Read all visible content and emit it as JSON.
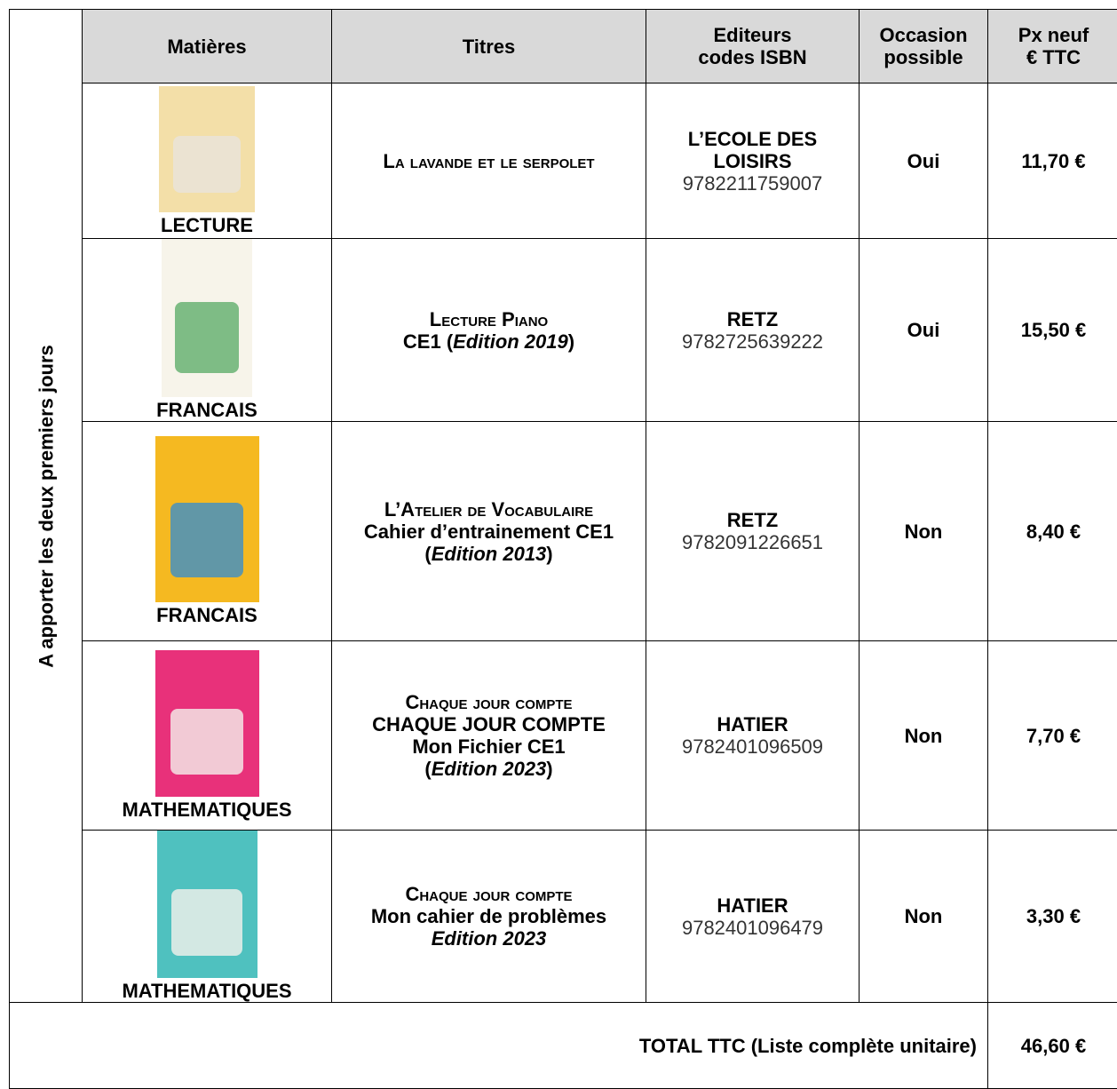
{
  "side_label": "A apporter les deux premiers jours",
  "header": {
    "subject": "Matières",
    "title": "Titres",
    "editor_lines": [
      "Editeurs",
      "codes ISBN"
    ],
    "used_lines": [
      "Occasion",
      "possible"
    ],
    "price_lines": [
      "Px neuf",
      "€ TTC"
    ]
  },
  "rows": [
    {
      "subject": "LECTURE",
      "title_lines": [
        [
          "La lavande et le serpolet"
        ]
      ],
      "editor_lines": [
        "L’ECOLE DES",
        "LOISIRS"
      ],
      "isbn": "9782211759007",
      "used": "Oui",
      "price": "11,70 €"
    },
    {
      "subject": "FRANCAIS",
      "title_lines": [
        [
          "Lecture Piano"
        ],
        [
          "CE1 (",
          "Edition 2019",
          ")"
        ]
      ],
      "editor_lines": [
        "RETZ"
      ],
      "isbn": "9782725639222",
      "used": "Oui",
      "price": "15,50 €"
    },
    {
      "subject": "FRANCAIS",
      "title_lines": [
        [
          "L’Atelier de Vocabulaire"
        ],
        [
          "Cahier d’entrainement CE1"
        ],
        [
          "(",
          "Edition 2013",
          ")"
        ]
      ],
      "editor_lines": [
        "RETZ"
      ],
      "isbn": "9782091226651",
      "used": "Non",
      "price": "8,40 €"
    },
    {
      "subject": "MATHEMATIQUES",
      "title_lines": [
        [
          "Chaque jour compte"
        ],
        [
          "CHAQUE JOUR COMPTE"
        ],
        [
          "Mon Fichier CE1"
        ],
        [
          "(",
          "Edition 2023",
          ")"
        ]
      ],
      "editor_lines": [
        "HATIER"
      ],
      "isbn": "9782401096509",
      "used": "Non",
      "price": "7,70 €"
    },
    {
      "subject": "MATHEMATIQUES",
      "title_lines": [
        [
          "Chaque jour compte"
        ],
        [
          "Mon cahier de problèmes"
        ],
        [
          "Edition 2023"
        ]
      ],
      "editor_lines": [
        "HATIER"
      ],
      "isbn": "9782401096479",
      "used": "Non",
      "price": "3,30 €"
    }
  ],
  "total": {
    "label": "TOTAL TTC (Liste complète unitaire)",
    "price": "46,60 €"
  }
}
